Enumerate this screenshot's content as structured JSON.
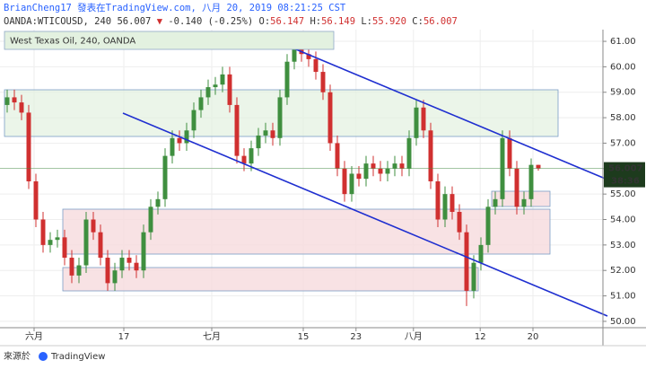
{
  "header": {
    "author_line": "BrianCheng17 發表在TradingView.com, 八月 20, 2019 08:21:25 CST",
    "symbol": "OANDA:WTICOUSD, 240",
    "last": "56.007",
    "change": "-0.140 (-0.25%)",
    "ohlc": [
      {
        "label": "O:",
        "value": "56.147"
      },
      {
        "label": "H:",
        "value": "56.149"
      },
      {
        "label": "L:",
        "value": "55.920"
      },
      {
        "label": "C:",
        "value": "56.007"
      }
    ]
  },
  "chart_data": {
    "type": "candlestick",
    "title": "West Texas Oil, 240, OANDA",
    "up_color": "#3f8f3f",
    "down_color": "#d03030",
    "grid": true,
    "last_label": "56.007",
    "countdown": "38:36",
    "x": [
      0,
      1,
      2,
      3,
      4,
      5,
      6,
      7,
      8,
      9,
      10,
      11,
      12,
      13,
      14,
      15,
      16,
      17,
      18,
      19,
      20,
      21,
      22,
      23,
      24,
      25,
      26,
      27,
      28,
      29,
      30,
      31,
      32,
      33,
      34,
      35,
      36,
      37,
      38,
      39,
      40,
      41,
      42,
      43,
      44,
      45,
      46,
      47,
      48,
      49,
      50,
      51,
      52,
      53,
      54,
      55,
      56,
      57,
      58,
      59,
      60,
      61,
      62,
      63,
      64,
      65,
      66,
      67,
      68,
      69,
      70,
      71,
      72,
      73,
      74
    ],
    "open": [
      58.5,
      58.8,
      58.6,
      58.2,
      55.5,
      54.0,
      53.0,
      53.2,
      53.3,
      52.5,
      51.8,
      52.2,
      54.0,
      53.5,
      52.5,
      51.5,
      52.0,
      52.5,
      52.3,
      52.0,
      53.5,
      54.5,
      54.8,
      56.5,
      57.2,
      57.0,
      57.5,
      58.3,
      58.8,
      59.2,
      59.3,
      59.7,
      58.5,
      56.5,
      56.2,
      56.8,
      57.3,
      57.5,
      57.2,
      58.8,
      60.2,
      60.7,
      60.5,
      60.3,
      59.8,
      59.0,
      57.0,
      56.0,
      55.0,
      55.8,
      55.6,
      56.2,
      56.0,
      55.8,
      56.0,
      56.2,
      56.0,
      57.2,
      58.4,
      57.5,
      55.5,
      54.0,
      55.0,
      54.3,
      53.5,
      51.2,
      52.3,
      53.0,
      54.5,
      54.8,
      57.2,
      56.0,
      54.5,
      54.8,
      56.147
    ],
    "high": [
      59.1,
      59.1,
      58.9,
      58.5,
      55.8,
      54.3,
      53.5,
      53.6,
      53.6,
      52.8,
      52.5,
      54.3,
      54.3,
      53.8,
      52.8,
      52.3,
      52.8,
      52.8,
      52.6,
      53.8,
      54.8,
      55.1,
      56.8,
      57.5,
      57.5,
      57.8,
      58.6,
      59.1,
      59.5,
      59.6,
      60.0,
      60.0,
      58.8,
      56.8,
      57.1,
      57.6,
      57.8,
      57.8,
      59.1,
      60.5,
      61.0,
      61.0,
      60.8,
      60.6,
      60.1,
      59.3,
      57.3,
      56.3,
      56.1,
      56.1,
      56.5,
      56.5,
      56.3,
      56.3,
      56.5,
      56.5,
      57.5,
      58.7,
      58.7,
      57.8,
      55.8,
      55.3,
      55.3,
      54.6,
      53.8,
      52.6,
      53.3,
      54.8,
      55.1,
      57.5,
      57.5,
      56.3,
      55.1,
      56.4,
      56.149
    ],
    "low": [
      58.2,
      58.3,
      57.9,
      55.2,
      53.7,
      52.7,
      52.7,
      52.9,
      52.2,
      51.5,
      51.5,
      51.9,
      53.2,
      52.2,
      51.2,
      51.2,
      51.7,
      52.0,
      51.7,
      51.7,
      53.2,
      54.2,
      54.5,
      56.2,
      56.7,
      56.7,
      57.2,
      58.0,
      58.5,
      58.9,
      59.0,
      58.2,
      56.2,
      55.9,
      55.9,
      56.5,
      57.0,
      56.9,
      56.9,
      58.5,
      59.9,
      60.2,
      60.0,
      59.5,
      58.7,
      56.7,
      55.7,
      54.7,
      54.7,
      55.3,
      55.3,
      55.7,
      55.5,
      55.5,
      55.7,
      55.7,
      55.7,
      56.9,
      57.2,
      55.2,
      53.7,
      53.7,
      54.0,
      53.2,
      50.6,
      50.9,
      52.0,
      52.7,
      54.2,
      54.5,
      55.7,
      54.2,
      54.2,
      54.5,
      55.92
    ],
    "close": [
      58.8,
      58.6,
      58.2,
      55.5,
      54.0,
      53.0,
      53.2,
      53.3,
      52.5,
      51.8,
      52.2,
      54.0,
      53.5,
      52.5,
      51.5,
      52.0,
      52.5,
      52.3,
      52.0,
      53.5,
      54.5,
      54.8,
      56.5,
      57.2,
      57.0,
      57.5,
      58.3,
      58.8,
      59.2,
      59.3,
      59.7,
      58.5,
      56.5,
      56.2,
      56.8,
      57.3,
      57.5,
      57.2,
      58.8,
      60.2,
      60.7,
      60.5,
      60.3,
      59.8,
      59.0,
      57.0,
      56.0,
      55.0,
      55.8,
      55.6,
      56.2,
      56.0,
      55.8,
      56.0,
      56.2,
      56.0,
      57.2,
      58.4,
      57.5,
      55.5,
      54.0,
      55.0,
      54.3,
      53.5,
      51.2,
      52.3,
      53.0,
      54.5,
      54.8,
      57.2,
      56.0,
      54.5,
      54.8,
      56.147,
      56.007
    ],
    "xlim": [
      -1,
      83
    ],
    "xticks": [
      {
        "value": 3.75,
        "label": "六月"
      },
      {
        "value": 16.25,
        "label": "17"
      },
      {
        "value": 28.5,
        "label": "七月"
      },
      {
        "value": 41.25,
        "label": "15"
      },
      {
        "value": 48.6,
        "label": "23"
      },
      {
        "value": 56.6,
        "label": "八月"
      },
      {
        "value": 65.9,
        "label": "12"
      },
      {
        "value": 73.25,
        "label": "20"
      }
    ],
    "ylim": [
      49.75,
      61.46
    ],
    "yticks": [
      {
        "value": 50,
        "label": "50.00"
      },
      {
        "value": 51,
        "label": "51.00"
      },
      {
        "value": 52,
        "label": "52.00"
      },
      {
        "value": 53,
        "label": "53.00"
      },
      {
        "value": 54,
        "label": "54.00"
      },
      {
        "value": 55,
        "label": "55.00"
      },
      {
        "value": 56,
        "label": "56.00"
      },
      {
        "value": 57,
        "label": "57.00"
      },
      {
        "value": 58,
        "label": "58.00"
      },
      {
        "value": 59,
        "label": "59.00"
      },
      {
        "value": 60,
        "label": "60.00"
      },
      {
        "value": 61,
        "label": "61.00"
      }
    ]
  },
  "footer": {
    "source": "來源於",
    "brand": "TradingView"
  }
}
